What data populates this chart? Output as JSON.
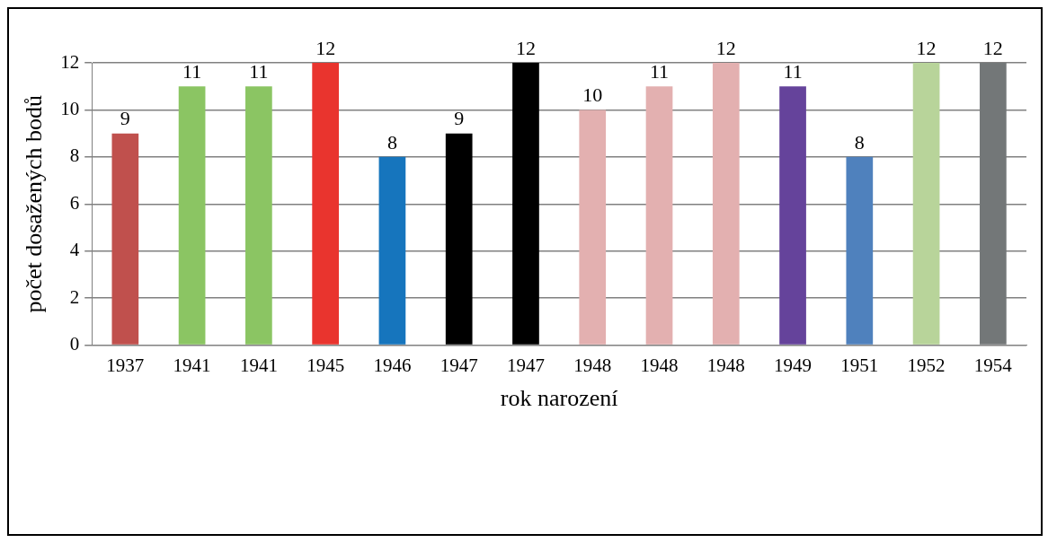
{
  "chart_data": {
    "type": "bar",
    "xlabel": "rok narození",
    "ylabel": "počet dosažených bodů",
    "categories": [
      "1937",
      "1941",
      "1941",
      "1945",
      "1946",
      "1947",
      "1947",
      "1948",
      "1948",
      "1948",
      "1949",
      "1951",
      "1952",
      "1954"
    ],
    "values": [
      9,
      11,
      11,
      12,
      8,
      9,
      12,
      10,
      11,
      12,
      11,
      8,
      12,
      12
    ],
    "colors": [
      "#c0504d",
      "#8bc563",
      "#8bc563",
      "#e9342e",
      "#1675bd",
      "#000000",
      "#000000",
      "#e3b0b0",
      "#e3b0b0",
      "#e3b0b0",
      "#65439b",
      "#4f81bd",
      "#b8d49a",
      "#737778"
    ],
    "ylim": [
      0,
      12
    ],
    "yticks": [
      0,
      2,
      4,
      6,
      8,
      10,
      12
    ],
    "grid": "y",
    "data_labels": true,
    "legend": false
  }
}
